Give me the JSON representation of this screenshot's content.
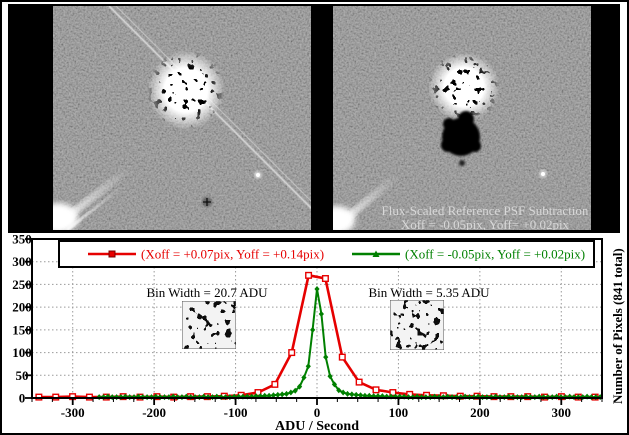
{
  "figure": {
    "right_image_caption": {
      "line1": "Flux-Scaled Reference PSF Subtraction",
      "line2": "Xoff = -0.05pix, Yoff= +0.02pix"
    }
  },
  "colors": {
    "red_series": "#e60000",
    "green_series": "#008000",
    "grid": "#9a9a9a",
    "image_background": "#8a8a8a",
    "panel_background": "#000000",
    "caption_text": "#d8d8d8"
  },
  "chart_data": {
    "type": "line",
    "title": "",
    "xlabel": "ADU / Second",
    "ylabel_right": "Number of Pixels (841 total)",
    "xlim": [
      -350,
      350
    ],
    "ylim": [
      0,
      350
    ],
    "x_ticks": [
      -300,
      -200,
      -100,
      0,
      100,
      200,
      300
    ],
    "y_ticks": [
      0,
      50,
      100,
      150,
      200,
      250,
      300,
      350
    ],
    "x_minor_tick_step": 25,
    "grid": "dotted-both-axes",
    "legend_position": "top-inside-full-width",
    "annotations": [
      {
        "text": "Bin Width = 20.7 ADU",
        "side": "left-of-peak"
      },
      {
        "text": "Bin Width = 5.35 ADU",
        "side": "right-of-peak"
      }
    ],
    "series": [
      {
        "name": "(Xoff = +0.07pix, Yoff = +0.14pix)",
        "color": "#e60000",
        "marker": "square",
        "bin_width_adu": 20.7,
        "x_start": -341.55,
        "x_step": 20.7,
        "values": [
          2,
          2,
          3,
          2,
          2,
          3,
          2,
          3,
          2,
          3,
          3,
          4,
          6,
          12,
          30,
          100,
          270,
          263,
          90,
          35,
          18,
          12,
          8,
          6,
          5,
          4,
          4,
          3,
          3,
          3,
          2,
          3,
          2,
          2
        ]
      },
      {
        "name": "(Xoff = -0.05pix, Yoff = +0.02pix)",
        "color": "#008000",
        "marker": "diamond",
        "bin_width_adu": 5.35,
        "x_start": -267.5,
        "x_step": 5.35,
        "values": [
          2,
          2,
          3,
          2,
          2,
          2,
          3,
          2,
          2,
          3,
          2,
          2,
          2,
          3,
          2,
          2,
          2,
          3,
          2,
          2,
          3,
          2,
          2,
          2,
          3,
          2,
          2,
          3,
          2,
          2,
          2,
          3,
          3,
          3,
          3,
          3,
          4,
          4,
          5,
          5,
          6,
          7,
          8,
          9,
          12,
          16,
          25,
          45,
          70,
          150,
          240,
          185,
          90,
          48,
          30,
          17,
          12,
          9,
          8,
          7,
          6,
          5,
          5,
          4,
          4,
          4,
          3,
          3,
          3,
          3,
          3,
          2,
          2,
          3,
          2,
          2,
          2,
          3,
          2,
          2,
          3,
          2,
          2,
          2,
          3,
          2,
          2,
          3,
          2,
          2,
          2,
          3,
          2,
          2,
          3,
          2,
          2,
          2,
          3,
          2,
          2,
          3,
          2,
          2,
          2,
          3,
          2,
          2,
          3,
          2,
          2,
          2,
          3,
          2,
          2,
          2
        ]
      }
    ]
  }
}
